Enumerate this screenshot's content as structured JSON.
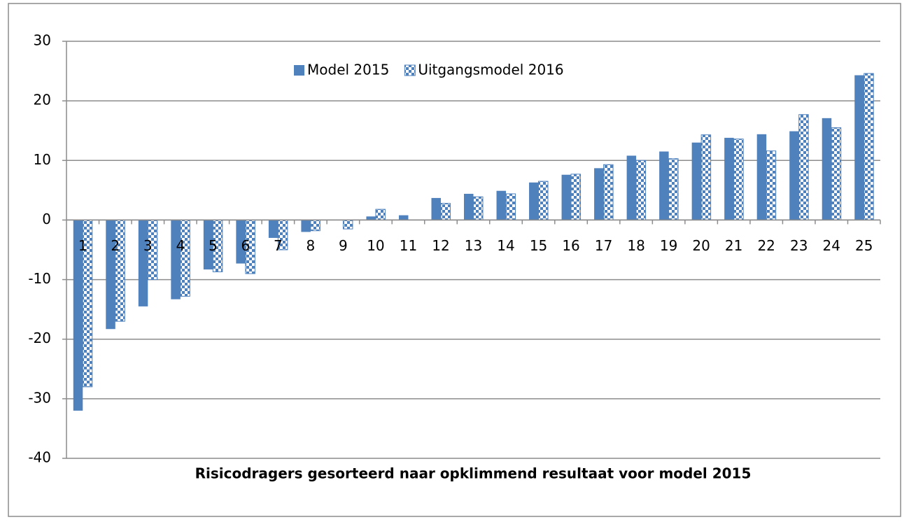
{
  "chart_data": {
    "type": "bar",
    "x_label": "Risicodragers gesorteerd naar opklimmend resultaat voor model 2015",
    "categories": [
      "1",
      "2",
      "3",
      "4",
      "5",
      "6",
      "7",
      "8",
      "9",
      "10",
      "11",
      "12",
      "13",
      "14",
      "15",
      "16",
      "17",
      "18",
      "19",
      "20",
      "21",
      "22",
      "23",
      "24",
      "25"
    ],
    "series": [
      {
        "name": "Model 2015",
        "color": "#4f81bd",
        "pattern": "solid",
        "values": [
          -32,
          -18.3,
          -14.5,
          -13.3,
          -8.3,
          -7.3,
          -3,
          -2,
          0,
          0.6,
          0.8,
          3.7,
          4.4,
          4.9,
          6.3,
          7.6,
          8.7,
          10.8,
          11.5,
          13,
          13.8,
          14.4,
          14.9,
          17.1,
          24.3
        ]
      },
      {
        "name": "Uitgangsmodel 2016",
        "color": "#4f81bd",
        "pattern": "checkered",
        "values": [
          -28,
          -17,
          -10,
          -12.8,
          -8.7,
          -9,
          -5,
          -1.8,
          -1.5,
          1.8,
          0,
          2.8,
          3.9,
          4.4,
          6.5,
          7.7,
          9.3,
          10,
          10.3,
          14.3,
          13.6,
          11.6,
          17.7,
          15.5,
          24.6
        ]
      }
    ],
    "ylim": [
      -40,
      30
    ],
    "yticks": [
      -40,
      -30,
      -20,
      -10,
      0,
      10,
      20,
      30
    ],
    "grid": true,
    "legend": "top"
  }
}
